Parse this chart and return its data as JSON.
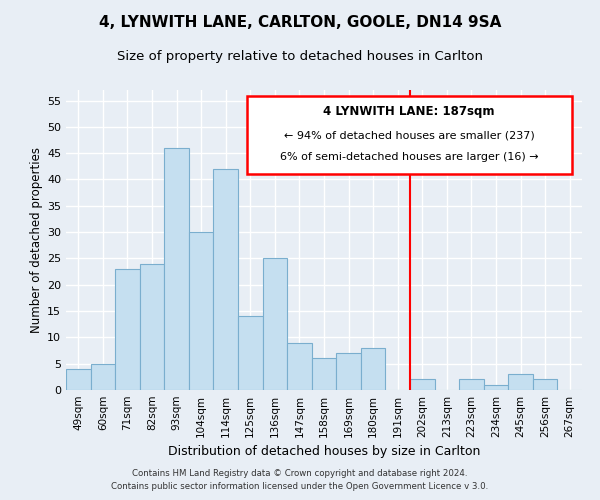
{
  "title": "4, LYNWITH LANE, CARLTON, GOOLE, DN14 9SA",
  "subtitle": "Size of property relative to detached houses in Carlton",
  "xlabel": "Distribution of detached houses by size in Carlton",
  "ylabel": "Number of detached properties",
  "footer_line1": "Contains HM Land Registry data © Crown copyright and database right 2024.",
  "footer_line2": "Contains public sector information licensed under the Open Government Licence v 3.0.",
  "bin_labels": [
    "49sqm",
    "60sqm",
    "71sqm",
    "82sqm",
    "93sqm",
    "104sqm",
    "114sqm",
    "125sqm",
    "136sqm",
    "147sqm",
    "158sqm",
    "169sqm",
    "180sqm",
    "191sqm",
    "202sqm",
    "213sqm",
    "223sqm",
    "234sqm",
    "245sqm",
    "256sqm",
    "267sqm"
  ],
  "bar_values": [
    4,
    5,
    23,
    24,
    46,
    30,
    42,
    14,
    25,
    9,
    6,
    7,
    8,
    0,
    2,
    0,
    2,
    1,
    3,
    2,
    0
  ],
  "bar_color": "#c5dff0",
  "bar_edge_color": "#7aaece",
  "vline_x": 13.5,
  "vline_color": "red",
  "annotation_title": "4 LYNWITH LANE: 187sqm",
  "annotation_line1": "← 94% of detached houses are smaller (237)",
  "annotation_line2": "6% of semi-detached houses are larger (16) →",
  "ylim": [
    0,
    57
  ],
  "yticks": [
    0,
    5,
    10,
    15,
    20,
    25,
    30,
    35,
    40,
    45,
    50,
    55
  ],
  "background_color": "#e8eef5",
  "grid_color": "#ffffff",
  "title_fontsize": 11,
  "subtitle_fontsize": 9.5
}
